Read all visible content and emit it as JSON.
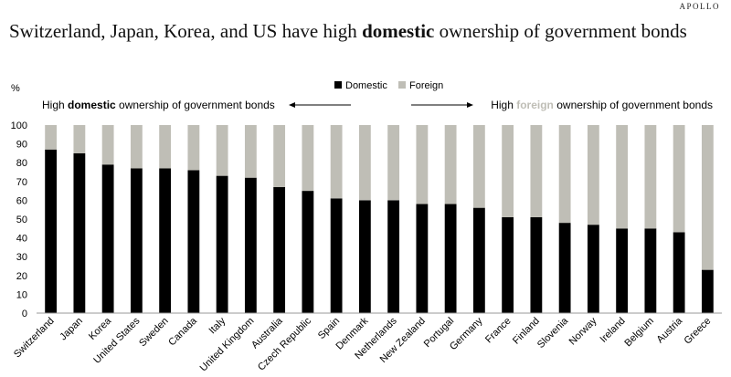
{
  "brand": "APOLLO",
  "title": {
    "prefix": "Switzerland, Japan, Korea, and US have high ",
    "emphasis": "domestic",
    "suffix": " ownership of government bonds"
  },
  "chart_data": {
    "type": "bar",
    "stacked": true,
    "ylabel": "%",
    "ylim": [
      0,
      100
    ],
    "yticks": [
      0,
      10,
      20,
      30,
      40,
      50,
      60,
      70,
      80,
      90,
      100
    ],
    "grid": false,
    "legend_position": "top-center",
    "categories": [
      "Switzerland",
      "Japan",
      "Korea",
      "United States",
      "Sweden",
      "Canada",
      "Italy",
      "United Kingdom",
      "Australia",
      "Czech Republic",
      "Spain",
      "Denmark",
      "Netherlands",
      "New Zealand",
      "Portugal",
      "Germany",
      "France",
      "Finland",
      "Slovenia",
      "Norway",
      "Ireland",
      "Belgium",
      "Austria",
      "Greece"
    ],
    "series": [
      {
        "name": "Domestic",
        "color": "#000000",
        "values": [
          87,
          85,
          79,
          77,
          77,
          76,
          73,
          72,
          67,
          65,
          61,
          60,
          60,
          58,
          58,
          56,
          51,
          51,
          48,
          47,
          45,
          45,
          43,
          23
        ]
      },
      {
        "name": "Foreign",
        "color": "#bfbeb6",
        "values": [
          13,
          15,
          21,
          23,
          23,
          24,
          27,
          28,
          33,
          35,
          39,
          40,
          40,
          42,
          42,
          44,
          49,
          49,
          52,
          53,
          55,
          55,
          57,
          77
        ]
      }
    ],
    "annotations": {
      "left": {
        "prefix": "High ",
        "emphasis": "domestic",
        "suffix": " ownership of government bonds"
      },
      "right": {
        "prefix": "High ",
        "emphasis": "foreign",
        "suffix": " ownership of government bonds"
      }
    }
  }
}
